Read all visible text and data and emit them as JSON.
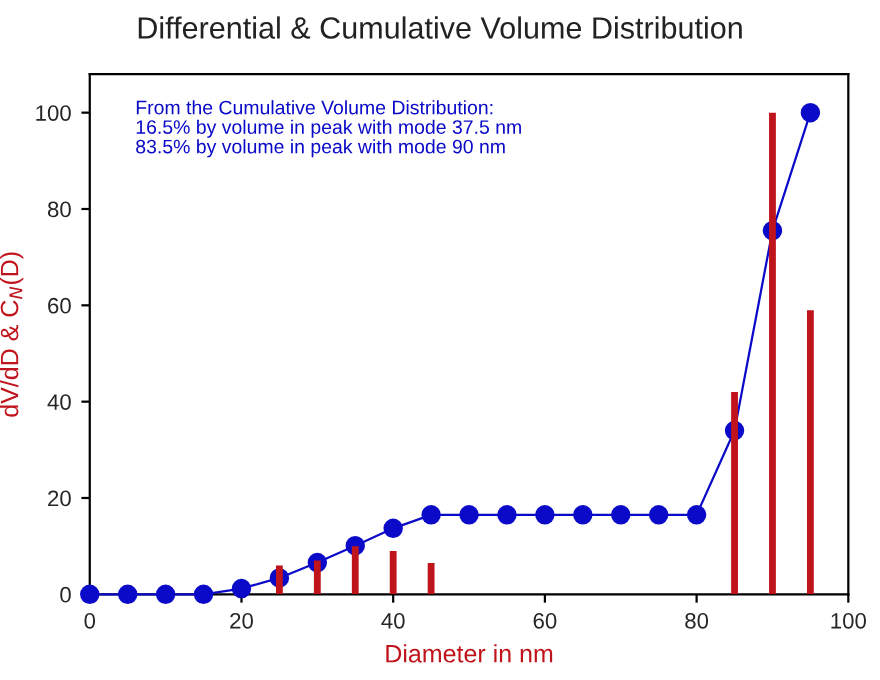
{
  "chart_data": {
    "type": "bar",
    "title": "Differential & Cumulative Volume Distribution",
    "xlabel": "Diameter in nm",
    "ylabel": "dV/dD & C$_{N}$(D)",
    "annotations": [
      "From the Cumulative Volume Distribution:\n16.5% by volume in peak with mode 37.5 nm\n83.5% by volume in peak with mode 90 nm"
    ],
    "x": [
      0,
      5,
      10,
      15,
      20,
      25,
      30,
      35,
      40,
      45,
      50,
      55,
      60,
      65,
      70,
      75,
      80,
      85,
      90,
      95
    ],
    "series": [
      {
        "color": "#c0141c",
        "values": [
          null,
          null,
          null,
          null,
          null,
          6,
          7,
          10,
          9,
          6.5,
          null,
          null,
          null,
          null,
          null,
          null,
          null,
          42,
          100,
          59
        ]
      },
      {
        "type": "line",
        "color": "#0a0ac8",
        "marker": "circle",
        "values": [
          0,
          0,
          0,
          0,
          1.2,
          3.4,
          6.6,
          10.1,
          13.7,
          16.5,
          16.5,
          16.5,
          16.5,
          16.5,
          16.5,
          16.5,
          16.5,
          34,
          75.5,
          100
        ]
      }
    ],
    "xlim": [
      0,
      100
    ],
    "ylim": [
      0,
      108
    ],
    "xticks": [
      0,
      20,
      40,
      60,
      80,
      100
    ],
    "yticks": [
      0,
      20,
      40,
      60,
      80,
      100
    ],
    "grid": false,
    "legend": false
  }
}
